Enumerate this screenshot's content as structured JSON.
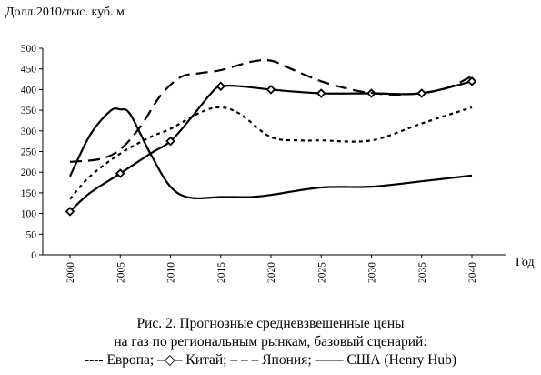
{
  "chart_data": {
    "type": "line",
    "ylabel": "Долл.2010/тыс. куб. м",
    "xlabel": "Год",
    "ylim": [
      0,
      500
    ],
    "yticks": [
      0,
      50,
      100,
      150,
      200,
      250,
      300,
      350,
      400,
      450,
      500
    ],
    "x": [
      2000,
      2005,
      2010,
      2015,
      2020,
      2025,
      2030,
      2035,
      2040
    ],
    "grid": false,
    "legend": "caption",
    "series": [
      {
        "name": "Европа",
        "style": "short-dash",
        "points": [
          [
            2000,
            135
          ],
          [
            2002,
            190
          ],
          [
            2005,
            245
          ],
          [
            2008,
            285
          ],
          [
            2010,
            305
          ],
          [
            2013,
            345
          ],
          [
            2015,
            357
          ],
          [
            2017,
            340
          ],
          [
            2020,
            285
          ],
          [
            2023,
            277
          ],
          [
            2025,
            277
          ],
          [
            2030,
            277
          ],
          [
            2035,
            318
          ],
          [
            2040,
            357
          ]
        ]
      },
      {
        "name": "Китай",
        "style": "solid-diamond",
        "points": [
          [
            2000,
            105
          ],
          [
            2002,
            150
          ],
          [
            2005,
            197
          ],
          [
            2008,
            245
          ],
          [
            2010,
            275
          ],
          [
            2012,
            330
          ],
          [
            2014,
            390
          ],
          [
            2015,
            408
          ],
          [
            2017,
            408
          ],
          [
            2020,
            400
          ],
          [
            2025,
            391
          ],
          [
            2030,
            391
          ],
          [
            2035,
            391
          ],
          [
            2040,
            420
          ]
        ],
        "markers": [
          [
            2000,
            105
          ],
          [
            2005,
            197
          ],
          [
            2010,
            275
          ],
          [
            2015,
            408
          ],
          [
            2020,
            400
          ],
          [
            2025,
            391
          ],
          [
            2030,
            391
          ],
          [
            2035,
            391
          ],
          [
            2040,
            420
          ]
        ]
      },
      {
        "name": "Япония",
        "style": "long-dash",
        "points": [
          [
            2000,
            225
          ],
          [
            2003,
            232
          ],
          [
            2005,
            255
          ],
          [
            2007,
            310
          ],
          [
            2009,
            385
          ],
          [
            2011,
            430
          ],
          [
            2013,
            440
          ],
          [
            2015,
            447
          ],
          [
            2018,
            467
          ],
          [
            2020,
            470
          ],
          [
            2022,
            450
          ],
          [
            2025,
            420
          ],
          [
            2028,
            400
          ],
          [
            2030,
            392
          ],
          [
            2033,
            388
          ],
          [
            2037,
            400
          ],
          [
            2040,
            432
          ]
        ]
      },
      {
        "name": "США (Henry Hub)",
        "style": "solid",
        "points": [
          [
            2000,
            190
          ],
          [
            2002,
            290
          ],
          [
            2004,
            348
          ],
          [
            2005,
            352
          ],
          [
            2006,
            340
          ],
          [
            2008,
            245
          ],
          [
            2010,
            165
          ],
          [
            2012,
            138
          ],
          [
            2015,
            140
          ],
          [
            2018,
            140
          ],
          [
            2020,
            145
          ],
          [
            2025,
            163
          ],
          [
            2030,
            165
          ],
          [
            2035,
            178
          ],
          [
            2040,
            192
          ]
        ]
      }
    ],
    "caption": [
      "Рис. 2. Прогнозные средневзвешенные цены",
      "на газ по региональным рынкам, базовый сценарий:",
      "---- Европа; –◇– Китай; – – – Япония; —— США (Henry Hub)"
    ]
  }
}
